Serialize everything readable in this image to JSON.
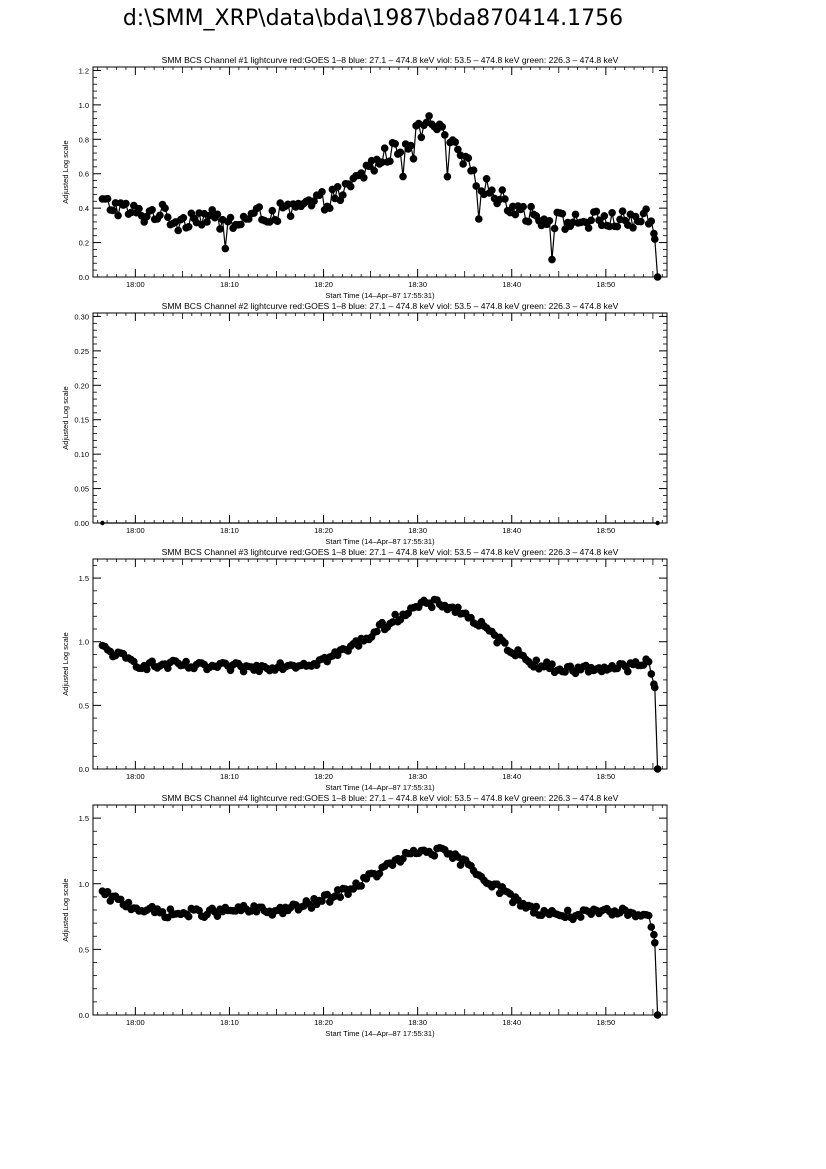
{
  "page": {
    "title": "d:\\SMM_XRP\\data\\bda\\1987\\bda870414.1756"
  },
  "colors": {
    "ink": "#000000",
    "background": "#ffffff"
  },
  "chart_data": [
    {
      "type": "scatter",
      "title": "SMM BCS Channel #1 lightcurve  red:GOES 1–8  blue: 27.1 – 474.8 keV  viol: 53.5 – 474.8 keV  green: 226.3 – 474.8 keV",
      "xlabel": "Start Time (14–Apr–87 17:55:31)",
      "ylabel": "Adjusted Log scale",
      "xlim": [
        -4.5,
        56.5
      ],
      "ylim": [
        0,
        1.22
      ],
      "xticks": [
        0,
        10,
        20,
        30,
        40,
        50
      ],
      "xtick_labels": [
        "18:00",
        "18:10",
        "18:20",
        "18:30",
        "18:40",
        "18:50"
      ],
      "yticks": [
        0,
        0.2,
        0.4,
        0.6,
        0.8,
        1.0,
        1.2
      ],
      "ytick_labels": [
        "0.0",
        "0.2",
        "0.4",
        "0.6",
        "0.8",
        "1.0",
        "1.2"
      ],
      "grid": false,
      "series": [
        {
          "x": [
            -3.5,
            -1.5,
            0.5,
            2.5,
            4.5,
            6.5,
            8.5,
            10.5,
            12.5,
            14.5,
            16.5,
            18.5,
            20.5,
            22.5,
            24.5,
            26.5,
            28.5,
            30.5,
            31.5,
            32.5,
            34.5,
            36.5,
            38.5,
            40.5,
            42.5,
            44.5,
            46.5,
            48.5,
            50.5,
            52.5,
            54.5,
            55.2,
            55.5
          ],
          "y": [
            0.43,
            0.4,
            0.36,
            0.38,
            0.32,
            0.36,
            0.33,
            0.31,
            0.35,
            0.37,
            0.38,
            0.42,
            0.45,
            0.5,
            0.62,
            0.7,
            0.77,
            0.86,
            0.9,
            0.83,
            0.7,
            0.56,
            0.47,
            0.4,
            0.35,
            0.33,
            0.32,
            0.33,
            0.33,
            0.33,
            0.34,
            0.22,
            0.0
          ]
        }
      ]
    },
    {
      "type": "scatter",
      "title": "SMM BCS Channel #2 lightcurve  red:GOES 1–8  blue: 27.1 – 474.8 keV  viol: 53.5 – 474.8 keV  green: 226.3 – 474.8 keV",
      "xlabel": "Start Time (14–Apr–87 17:55:31)",
      "ylabel": "Adjusted Log scale",
      "xlim": [
        -4.5,
        56.5
      ],
      "ylim": [
        0,
        0.305
      ],
      "xticks": [
        0,
        10,
        20,
        30,
        40,
        50
      ],
      "xtick_labels": [
        "18:00",
        "18:10",
        "18:20",
        "18:30",
        "18:40",
        "18:50"
      ],
      "yticks": [
        0,
        0.05,
        0.1,
        0.15,
        0.2,
        0.25,
        0.3
      ],
      "ytick_labels": [
        "0.00",
        "0.05",
        "0.10",
        "0.15",
        "0.20",
        "0.25",
        "0.30"
      ],
      "grid": false,
      "series": [
        {
          "x": [
            -3.5,
            55.5
          ],
          "y": [
            0,
            0
          ]
        }
      ]
    },
    {
      "type": "scatter",
      "title": "SMM BCS Channel #3 lightcurve  red:GOES 1–8  blue: 27.1 – 474.8 keV  viol: 53.5 – 474.8 keV  green: 226.3 – 474.8 keV",
      "xlabel": "Start Time (14–Apr–87 17:55:31)",
      "ylabel": "Adjusted Log scale",
      "xlim": [
        -4.5,
        56.5
      ],
      "ylim": [
        0,
        1.65
      ],
      "xticks": [
        0,
        10,
        20,
        30,
        40,
        50
      ],
      "xtick_labels": [
        "18:00",
        "18:10",
        "18:20",
        "18:30",
        "18:40",
        "18:50"
      ],
      "yticks": [
        0,
        0.5,
        1.0,
        1.5
      ],
      "ytick_labels": [
        "0.0",
        "0.5",
        "1.0",
        "1.5"
      ],
      "grid": false,
      "series": [
        {
          "x": [
            -3.5,
            -1.5,
            0.5,
            2.5,
            4.5,
            6.5,
            8.5,
            10.5,
            12.5,
            14.5,
            16.5,
            18.5,
            20.5,
            22.5,
            24.5,
            26.5,
            28.5,
            30.5,
            32.5,
            34.5,
            36.5,
            38.5,
            40.5,
            42.5,
            44.5,
            46.5,
            48.5,
            50.5,
            52.5,
            54.5,
            55.2,
            55.5
          ],
          "y": [
            0.95,
            0.88,
            0.82,
            0.81,
            0.82,
            0.8,
            0.8,
            0.8,
            0.79,
            0.81,
            0.82,
            0.83,
            0.87,
            0.94,
            1.03,
            1.13,
            1.22,
            1.29,
            1.3,
            1.24,
            1.14,
            1.02,
            0.91,
            0.83,
            0.79,
            0.78,
            0.79,
            0.8,
            0.8,
            0.84,
            0.64,
            0.0
          ]
        }
      ]
    },
    {
      "type": "scatter",
      "title": "SMM BCS Channel #4 lightcurve  red:GOES 1–8  blue: 27.1 – 474.8 keV  viol: 53.5 – 474.8 keV  green: 226.3 – 474.8 keV",
      "xlabel": "Start Time (14–Apr–87 17:55:31)",
      "ylabel": "Adjusted Log scale",
      "xlim": [
        -4.5,
        56.5
      ],
      "ylim": [
        0,
        1.6
      ],
      "xticks": [
        0,
        10,
        20,
        30,
        40,
        50
      ],
      "xtick_labels": [
        "18:00",
        "18:10",
        "18:20",
        "18:30",
        "18:40",
        "18:50"
      ],
      "yticks": [
        0,
        0.5,
        1.0,
        1.5
      ],
      "ytick_labels": [
        "0.0",
        "0.5",
        "1.0",
        "1.5"
      ],
      "grid": false,
      "series": [
        {
          "x": [
            -3.5,
            -1.5,
            0.5,
            2.5,
            4.5,
            6.5,
            8.5,
            10.5,
            12.5,
            14.5,
            16.5,
            18.5,
            20.5,
            22.5,
            24.5,
            26.5,
            28.5,
            30.5,
            32.5,
            34.5,
            36.5,
            38.5,
            40.5,
            42.5,
            44.5,
            46.5,
            48.5,
            50.5,
            52.5,
            54.5,
            55.2,
            55.5
          ],
          "y": [
            0.92,
            0.86,
            0.81,
            0.78,
            0.77,
            0.78,
            0.78,
            0.8,
            0.8,
            0.79,
            0.81,
            0.84,
            0.89,
            0.95,
            1.03,
            1.12,
            1.2,
            1.25,
            1.24,
            1.18,
            1.08,
            0.97,
            0.87,
            0.8,
            0.77,
            0.76,
            0.77,
            0.78,
            0.78,
            0.78,
            0.55,
            0.0
          ]
        }
      ]
    }
  ]
}
